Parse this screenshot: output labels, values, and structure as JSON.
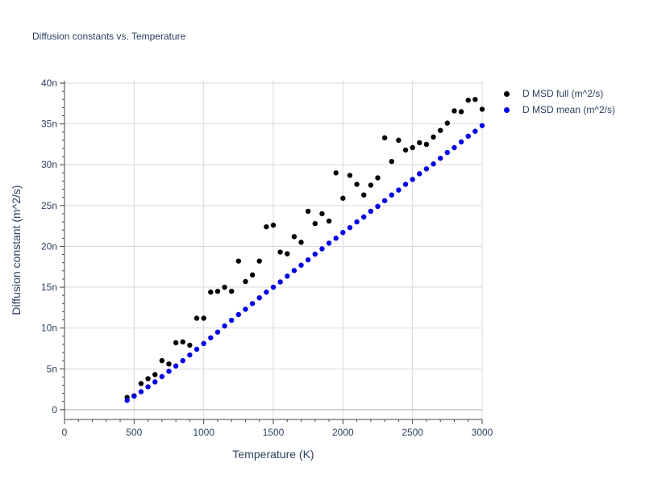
{
  "chart_data": {
    "type": "scatter",
    "title": "Diffusion constants vs. Temperature",
    "xlabel": "Temperature (K)",
    "ylabel": "Diffusion constant (m^2/s)",
    "xlim": [
      0,
      3000
    ],
    "ylim": [
      -1.2,
      40.3
    ],
    "x_ticks": [
      0,
      500,
      1000,
      1500,
      2000,
      2500,
      3000
    ],
    "x_tick_labels": [
      "0",
      "500",
      "1000",
      "1500",
      "2000",
      "2500",
      "3000"
    ],
    "y_ticks": [
      0,
      5,
      10,
      15,
      20,
      25,
      30,
      35,
      40
    ],
    "y_tick_labels": [
      "0",
      "5n",
      "10n",
      "15n",
      "20n",
      "25n",
      "30n",
      "35n",
      "40n"
    ],
    "y_unit_note": "values in units of 1e-9 m^2/s (n suffix)",
    "grid": true,
    "legend_position": "top-right outside plot",
    "series": [
      {
        "name": "D MSD full (m^2/s)",
        "color": "#000000",
        "x": [
          450,
          500,
          550,
          600,
          650,
          700,
          750,
          800,
          850,
          900,
          950,
          1000,
          1050,
          1100,
          1150,
          1200,
          1250,
          1300,
          1350,
          1400,
          1450,
          1500,
          1550,
          1600,
          1650,
          1700,
          1750,
          1800,
          1850,
          1900,
          1950,
          2000,
          2050,
          2100,
          2150,
          2200,
          2250,
          2300,
          2350,
          2400,
          2450,
          2500,
          2550,
          2600,
          2650,
          2700,
          2750,
          2800,
          2850,
          2900,
          2950,
          3000
        ],
        "y": [
          1.5,
          1.7,
          3.2,
          3.8,
          4.3,
          6.0,
          5.6,
          8.2,
          8.3,
          7.9,
          11.2,
          11.2,
          14.4,
          14.5,
          15.0,
          14.5,
          18.2,
          15.7,
          16.5,
          18.2,
          22.4,
          22.6,
          19.3,
          19.1,
          21.2,
          20.5,
          24.3,
          22.8,
          24.0,
          23.1,
          29.0,
          25.9,
          28.7,
          27.6,
          26.3,
          27.5,
          28.4,
          33.3,
          30.4,
          33.0,
          31.8,
          32.1,
          32.7,
          32.5,
          33.4,
          34.2,
          35.1,
          36.6,
          36.5,
          37.9,
          38.0,
          36.8
        ]
      },
      {
        "name": "D MSD mean (m^2/s)",
        "color": "#0000e6",
        "x": [
          450,
          500,
          550,
          600,
          650,
          700,
          750,
          800,
          850,
          900,
          950,
          1000,
          1050,
          1100,
          1150,
          1200,
          1250,
          1300,
          1350,
          1400,
          1450,
          1500,
          1550,
          1600,
          1650,
          1700,
          1750,
          1800,
          1850,
          1900,
          1950,
          2000,
          2050,
          2100,
          2150,
          2200,
          2250,
          2300,
          2350,
          2400,
          2450,
          2500,
          2550,
          2600,
          2650,
          2700,
          2750,
          2800,
          2850,
          2900,
          2950,
          3000
        ],
        "y": [
          1.15,
          1.65,
          2.2,
          2.8,
          3.4,
          4.05,
          4.7,
          5.35,
          6.0,
          6.7,
          7.4,
          8.1,
          8.8,
          9.5,
          10.25,
          10.95,
          11.65,
          12.3,
          13.0,
          13.7,
          14.4,
          15.0,
          15.65,
          16.35,
          17.05,
          17.7,
          18.35,
          19.05,
          19.7,
          20.4,
          21.0,
          21.7,
          22.3,
          23.0,
          23.6,
          24.3,
          24.9,
          25.6,
          26.3,
          26.9,
          27.6,
          28.2,
          28.9,
          29.5,
          30.1,
          30.8,
          31.5,
          32.1,
          32.8,
          33.5,
          34.1,
          34.8
        ]
      }
    ]
  }
}
